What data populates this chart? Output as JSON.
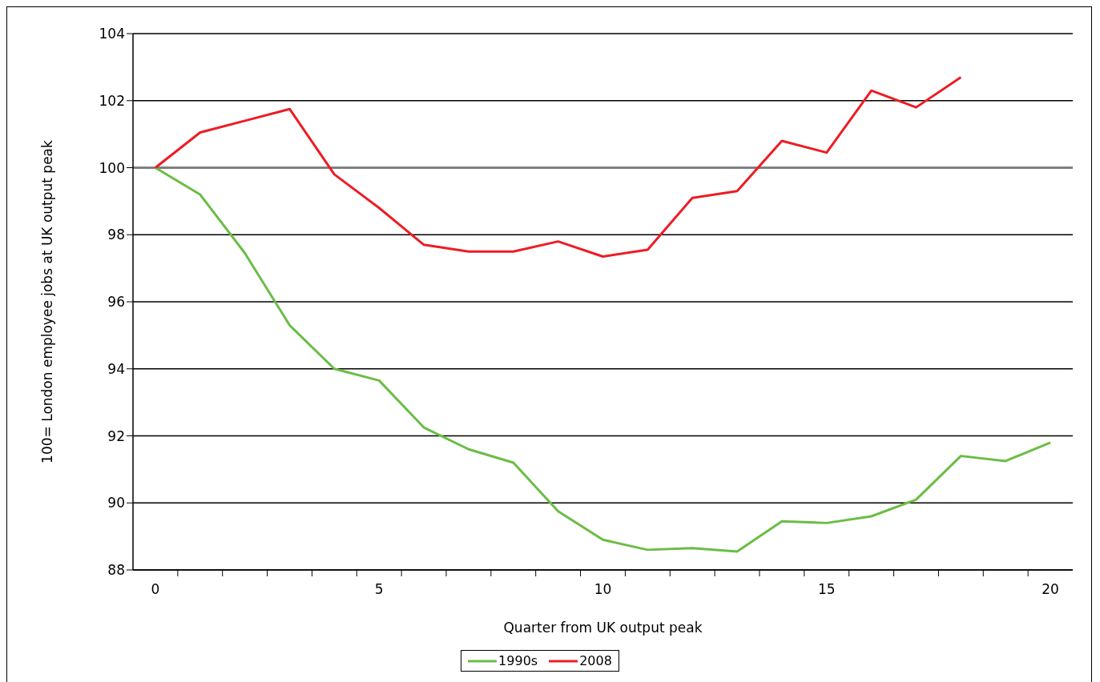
{
  "chart_data": {
    "type": "line",
    "xlabel": "Quarter from UK output peak",
    "ylabel": "100= London employee jobs at UK output peak",
    "x": [
      0,
      1,
      2,
      3,
      4,
      5,
      6,
      7,
      8,
      9,
      10,
      11,
      12,
      13,
      14,
      15,
      16,
      17,
      18,
      19,
      20
    ],
    "series": [
      {
        "name": "1990s",
        "color": "#6abd45",
        "values": [
          100,
          99.2,
          97.45,
          95.3,
          94.0,
          93.65,
          92.25,
          91.6,
          91.2,
          89.75,
          88.9,
          88.6,
          88.65,
          88.55,
          89.45,
          89.4,
          89.6,
          90.1,
          91.4,
          91.25,
          91.8
        ]
      },
      {
        "name": "2008",
        "color": "#ed1c24",
        "values": [
          100,
          101.05,
          101.4,
          101.75,
          99.8,
          98.8,
          97.7,
          97.5,
          97.5,
          97.8,
          97.35,
          97.55,
          99.1,
          99.3,
          100.8,
          100.45,
          102.3,
          101.8,
          102.7,
          null,
          null
        ]
      }
    ],
    "xlim": [
      -0.5,
      20.5
    ],
    "xticks": [
      0,
      {
        "value": 0.5,
        "label": null
      },
      {
        "value": 1.5,
        "label": null
      },
      {
        "value": 2.5,
        "label": null
      },
      {
        "value": 3.5,
        "label": null
      },
      {
        "value": 4.5,
        "label": null
      },
      5,
      {
        "value": 5.5,
        "label": null
      },
      {
        "value": 6.5,
        "label": null
      },
      {
        "value": 7.5,
        "label": null
      },
      {
        "value": 8.5,
        "label": null
      },
      {
        "value": 9.5,
        "label": null
      },
      10,
      {
        "value": 10.5,
        "label": null
      },
      {
        "value": 11.5,
        "label": null
      },
      {
        "value": 12.5,
        "label": null
      },
      {
        "value": 13.5,
        "label": null
      },
      {
        "value": 14.5,
        "label": null
      },
      15,
      {
        "value": 15.5,
        "label": null
      },
      {
        "value": 16.5,
        "label": null
      },
      {
        "value": 17.5,
        "label": null
      },
      {
        "value": 18.5,
        "label": null
      },
      {
        "value": 19.5,
        "label": null
      },
      20
    ],
    "ylim": [
      88,
      104
    ],
    "yticks": [
      88,
      90,
      92,
      94,
      96,
      98,
      100,
      102,
      104
    ],
    "grid": "y",
    "legend": "bottom",
    "marker": "none",
    "line_style": "solid",
    "ref_lines": [
      {
        "axis": "y",
        "value": 100,
        "color": "#808080"
      }
    ]
  }
}
